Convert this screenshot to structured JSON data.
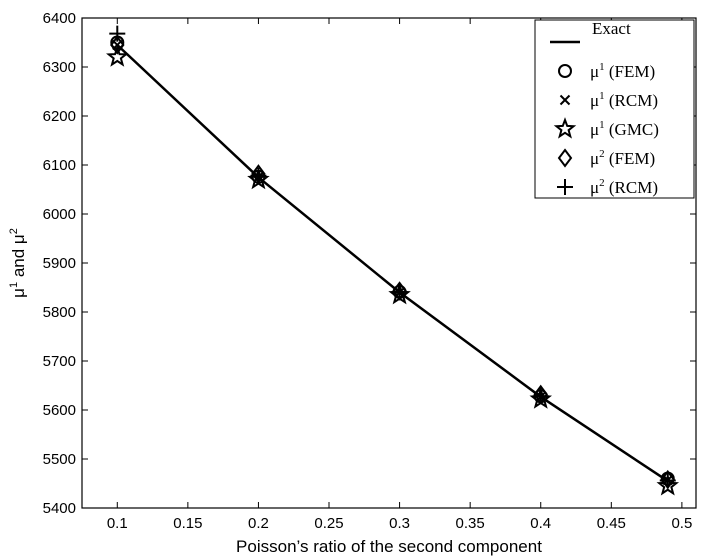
{
  "chart_data": {
    "type": "line",
    "xlabel": "Poisson’s ratio of the second component",
    "ylabel": {
      "base1": "μ",
      "sup1": "1",
      "mid": " and ",
      "base2": "μ",
      "sup2": "2"
    },
    "xlim": [
      0.075,
      0.51
    ],
    "ylim": [
      5400,
      6400
    ],
    "x_ticks": [
      0.1,
      0.15,
      0.2,
      0.25,
      0.3,
      0.35,
      0.4,
      0.45,
      0.5
    ],
    "y_ticks": [
      5400,
      5500,
      5600,
      5700,
      5800,
      5900,
      6000,
      6100,
      6200,
      6300,
      6400
    ],
    "legend_position": "top-right",
    "series": [
      {
        "name": "Exact",
        "base": "",
        "sup": "",
        "suffix": "",
        "marker": "line",
        "x": [
          0.1,
          0.2,
          0.3,
          0.4,
          0.49
        ],
        "values": [
          6345,
          6075,
          5840,
          5627,
          5455
        ]
      },
      {
        "name": "μ1 (FEM)",
        "base": "μ",
        "sup": "1",
        "suffix": " (FEM)",
        "marker": "circle",
        "x": [
          0.1,
          0.2,
          0.3,
          0.4,
          0.49
        ],
        "values": [
          6350,
          6076,
          5841,
          5628,
          5460
        ]
      },
      {
        "name": "μ1 (RCM)",
        "base": "μ",
        "sup": "1",
        "suffix": " (RCM)",
        "marker": "x",
        "x": [
          0.1,
          0.2,
          0.3,
          0.4,
          0.49
        ],
        "values": [
          6345,
          6075,
          5840,
          5627,
          5457
        ]
      },
      {
        "name": "μ1 (GMC)",
        "base": "μ",
        "sup": "1",
        "suffix": " (GMC)",
        "marker": "star",
        "x": [
          0.1,
          0.2,
          0.3,
          0.4,
          0.49
        ],
        "values": [
          6320,
          6070,
          5835,
          5622,
          5445
        ]
      },
      {
        "name": "μ2 (FEM)",
        "base": "μ",
        "sup": "2",
        "suffix": " (FEM)",
        "marker": "diamond",
        "x": [
          0.1,
          0.2,
          0.3,
          0.4,
          0.49
        ],
        "values": [
          6345,
          6082,
          5843,
          5632,
          5458
        ]
      },
      {
        "name": "μ2 (RCM)",
        "base": "μ",
        "sup": "2",
        "suffix": " (RCM)",
        "marker": "plus",
        "x": [
          0.1,
          0.2,
          0.3,
          0.4,
          0.49
        ],
        "values": [
          6368,
          6078,
          5840,
          5628,
          5456
        ]
      }
    ],
    "grid": false
  }
}
